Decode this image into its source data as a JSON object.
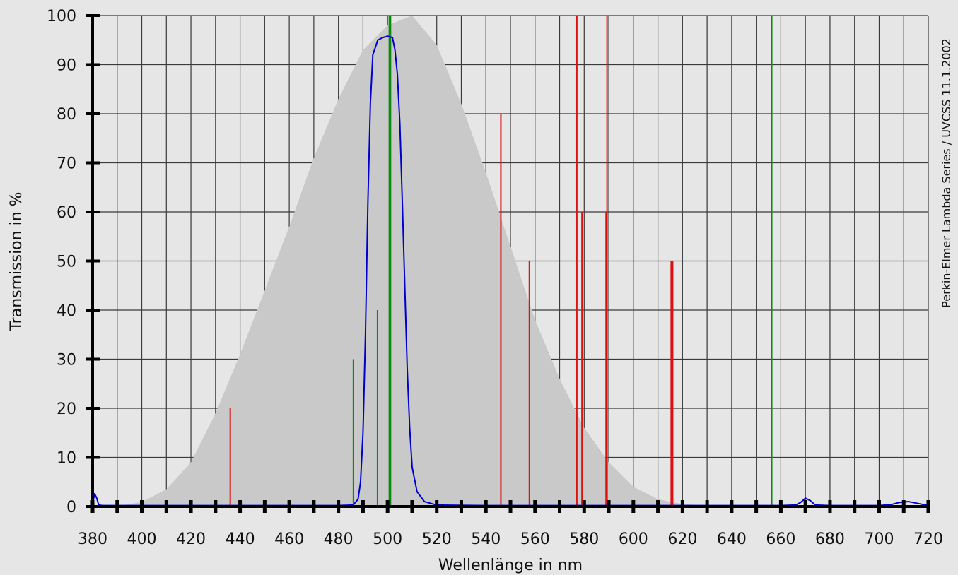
{
  "chart_data": {
    "type": "line",
    "xlabel": "Wellenlänge in nm",
    "ylabel": "Transmission in %",
    "side_note": "Perkin-Elmer Lambda Series / UVCSS 11.1.2002",
    "xlim": [
      380,
      720
    ],
    "ylim": [
      0,
      100
    ],
    "x_ticks": [
      380,
      400,
      420,
      440,
      460,
      480,
      500,
      520,
      540,
      560,
      580,
      600,
      620,
      640,
      660,
      680,
      700,
      720
    ],
    "y_ticks": [
      0,
      10,
      20,
      30,
      40,
      50,
      60,
      70,
      80,
      90,
      100
    ],
    "grid": true,
    "colors": {
      "background": "#e6e6e6",
      "grid": "#3a3a3a",
      "sensitivity_fill": "#c9c9c9",
      "transmission_line": "#0000cc",
      "green_lines": "#118811",
      "red_lines": "#dd1111",
      "axis": "#000000"
    },
    "sensitivity_curve": {
      "x": [
        380,
        390,
        400,
        410,
        420,
        430,
        440,
        450,
        460,
        470,
        480,
        490,
        500,
        510,
        520,
        530,
        540,
        550,
        560,
        570,
        580,
        590,
        600,
        610,
        620,
        630,
        640,
        650,
        660,
        670,
        680,
        690,
        700,
        710,
        720
      ],
      "y": [
        0,
        0.1,
        0.9,
        3.5,
        9,
        19,
        31,
        44,
        57,
        71,
        83,
        93,
        98,
        100,
        94,
        82,
        68,
        53,
        38,
        26,
        16,
        9,
        4,
        1.5,
        0.5,
        0.2,
        0.1,
        0,
        0,
        0,
        0,
        0,
        0,
        0,
        0
      ]
    },
    "transmission_curve": {
      "x": [
        380,
        380.8,
        381.6,
        382.5,
        384,
        390,
        400,
        420,
        440,
        460,
        480,
        486,
        488,
        489,
        490,
        491,
        492,
        493,
        494,
        496,
        498,
        500,
        502,
        503,
        504,
        505,
        506,
        507,
        508,
        509,
        510,
        512,
        515,
        520,
        540,
        560,
        580,
        600,
        620,
        640,
        660,
        666,
        668,
        670,
        672,
        674,
        680,
        690,
        700,
        705,
        708,
        712,
        716,
        720
      ],
      "y": [
        0.5,
        2.6,
        1.8,
        0.3,
        0.2,
        0.2,
        0.2,
        0.2,
        0.2,
        0.2,
        0.2,
        0.3,
        1.5,
        5,
        15,
        35,
        62,
        82,
        92,
        95,
        95.5,
        95.8,
        95.5,
        93,
        88,
        78,
        62,
        45,
        28,
        16,
        8,
        3,
        1,
        0.3,
        0.2,
        0.2,
        0.2,
        0.2,
        0.2,
        0.2,
        0.2,
        0.3,
        0.8,
        1.7,
        1.2,
        0.3,
        0.2,
        0.2,
        0.2,
        0.4,
        0.8,
        1.0,
        0.6,
        0.2
      ]
    },
    "spectral_lines": [
      {
        "x": 436,
        "y": 20,
        "color": "red"
      },
      {
        "x": 486.1,
        "y": 30,
        "color": "green"
      },
      {
        "x": 495.9,
        "y": 40,
        "color": "green"
      },
      {
        "x": 500.7,
        "y": 100,
        "color": "green"
      },
      {
        "x": 501.2,
        "y": 100,
        "color": "green"
      },
      {
        "x": 546.1,
        "y": 80,
        "color": "red"
      },
      {
        "x": 557.7,
        "y": 50,
        "color": "red"
      },
      {
        "x": 577,
        "y": 100,
        "color": "red"
      },
      {
        "x": 579.1,
        "y": 60,
        "color": "red"
      },
      {
        "x": 588.9,
        "y": 60,
        "color": "red"
      },
      {
        "x": 589.3,
        "y": 100,
        "color": "red"
      },
      {
        "x": 615.4,
        "y": 50,
        "color": "red"
      },
      {
        "x": 616.0,
        "y": 50,
        "color": "red"
      },
      {
        "x": 656.3,
        "y": 100,
        "color": "green"
      }
    ]
  }
}
